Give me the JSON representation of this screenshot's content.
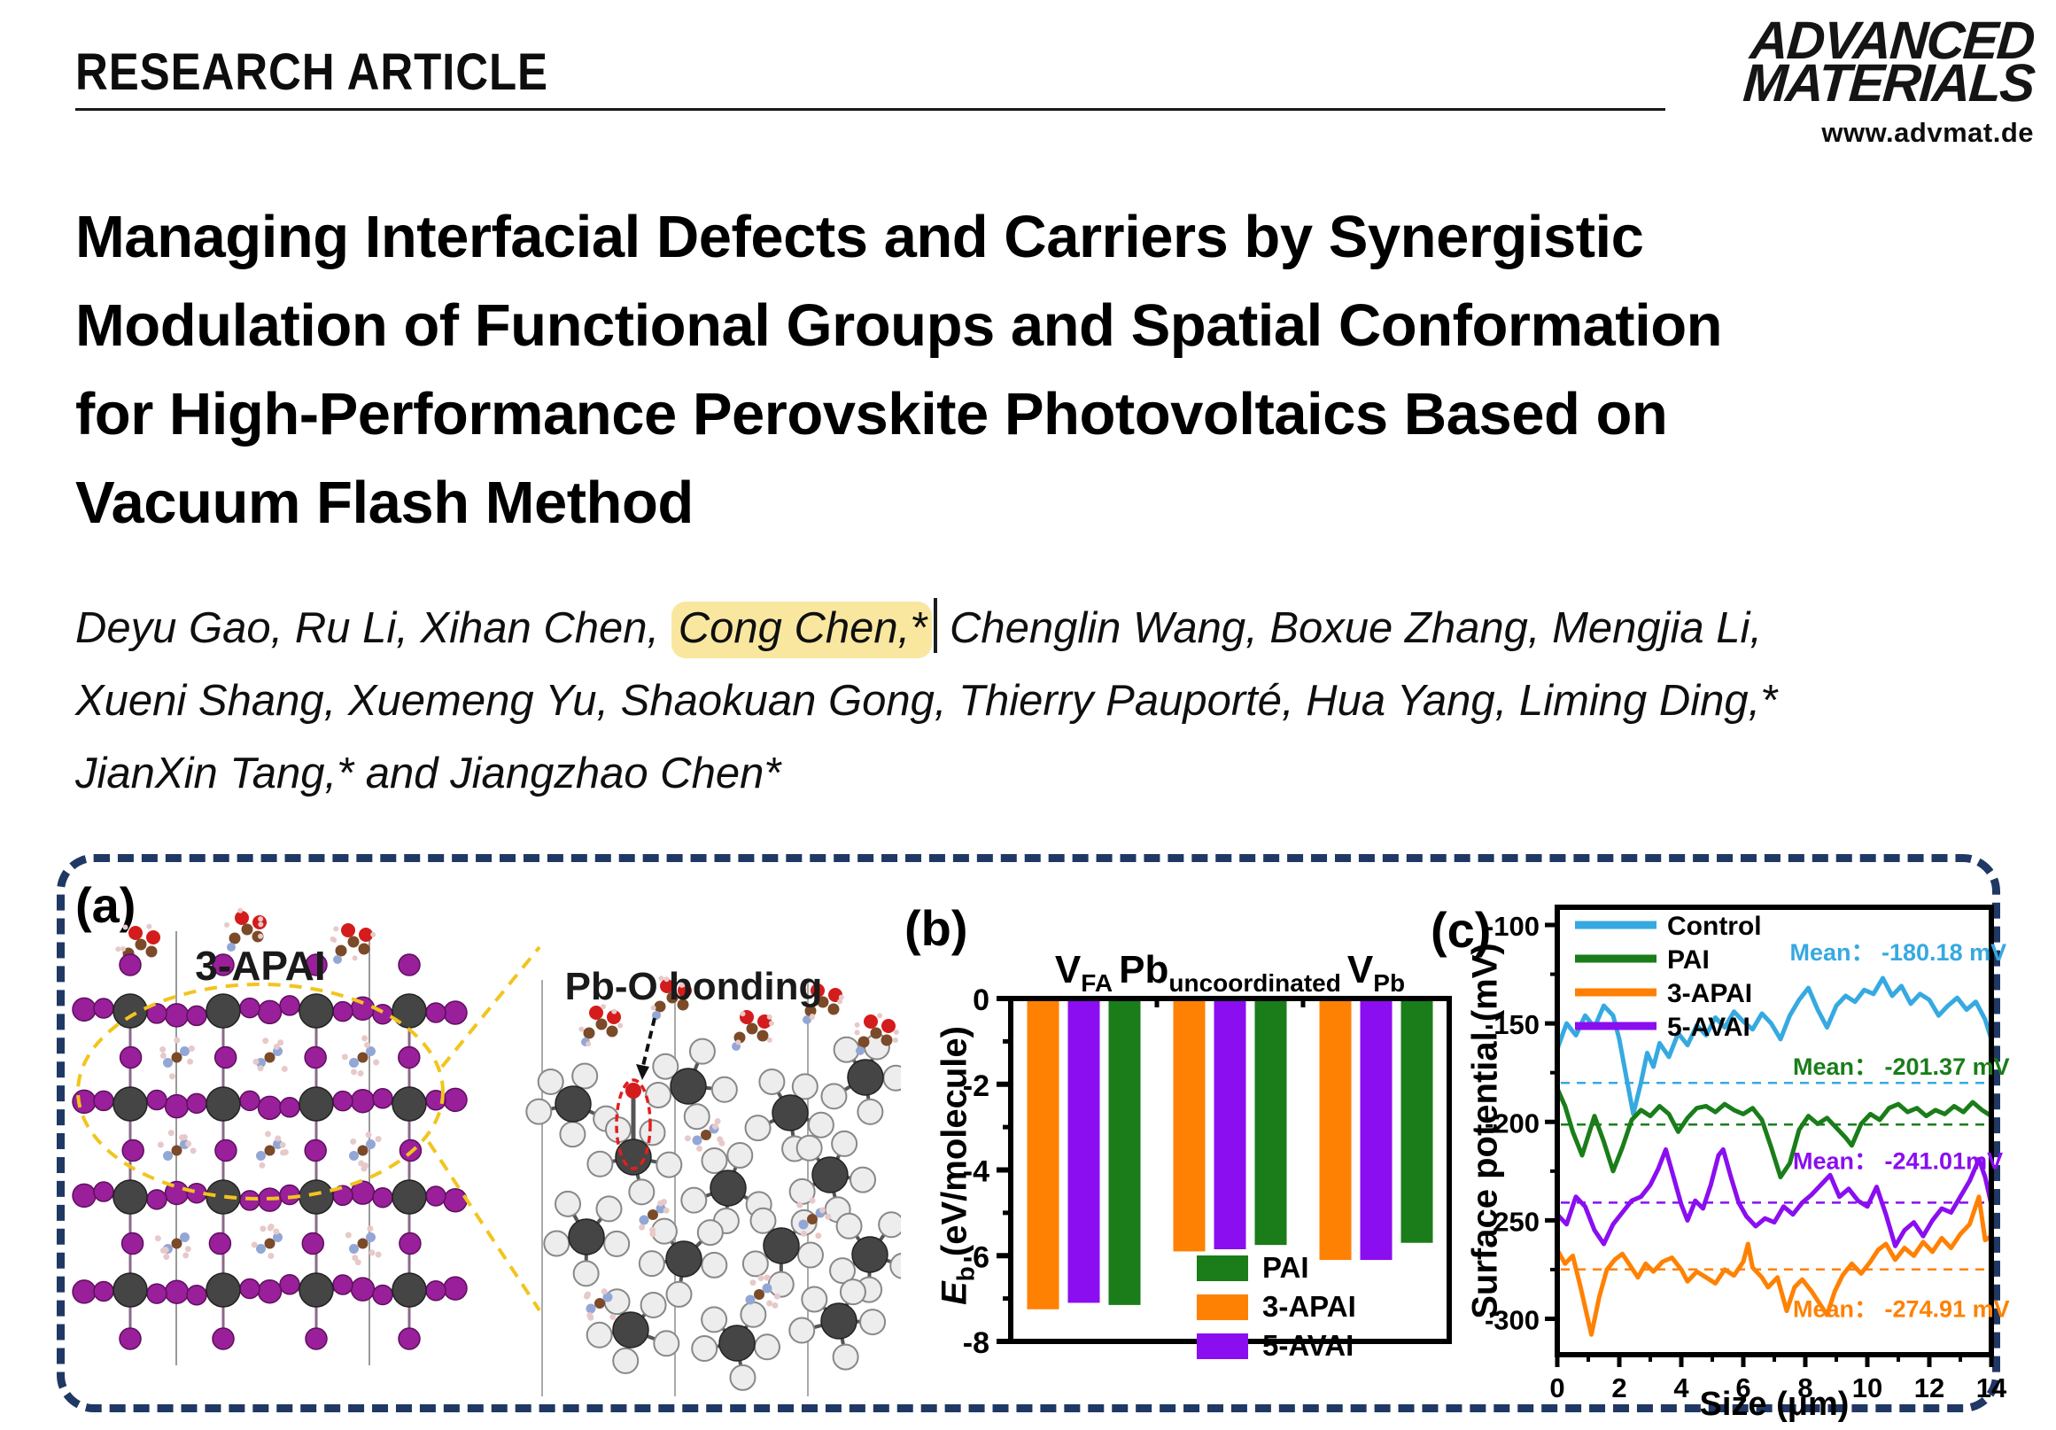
{
  "header": {
    "article_type": "RESEARCH ARTICLE",
    "journal_logo_line1": "ADVANCED",
    "journal_logo_line2": "MATERIALS",
    "journal_url": "www.advmat.de"
  },
  "title_lines": [
    "Managing Interfacial Defects and Carriers by Synergistic",
    "Modulation of Functional Groups and Spatial Conformation",
    "for High-Performance Perovskite Photovoltaics Based on",
    "Vacuum Flash Method"
  ],
  "authors": {
    "line1_before": "Deyu Gao, Ru Li, Xihan Chen, ",
    "highlighted": "Cong Chen,*",
    "line1_after": " Chenglin Wang, Boxue Zhang, Mengjia Li,",
    "line2": "Xueni Shang, Xuemeng Yu, Shaokuan Gong, Thierry Pauporté, Hua Yang, Liming Ding,*",
    "line3": "JianXin Tang,* and Jiangzhao Chen*",
    "highlight_color": "#f9e7a0"
  },
  "figure": {
    "border_color": "#1f3864",
    "panel_a": {
      "label": "(a)",
      "left_structure_label": "3-APAI",
      "right_structure_label": "Pb-O bonding",
      "colors": {
        "iodine": "#9a1f9a",
        "lead": "#454545",
        "halide_light": "#ededed",
        "oxygen": "#d41c1c",
        "carbon": "#7b4a28",
        "nitrogen": "#93a7d6",
        "hydrogen": "#e7c9c9",
        "highlight_ellipse": "#f2c41d",
        "bond_ellipse": "#e01f1f"
      }
    },
    "panel_b": {
      "label": "(b)"
    },
    "panel_c": {
      "label": "(c)"
    }
  },
  "chart_data": [
    {
      "id": "binding-energy-bars",
      "type": "bar",
      "ylabel_parts": {
        "em": "E",
        "sub": "b",
        "rest": " (eV/molecule)"
      },
      "ylim": [
        -8,
        0
      ],
      "yticks": [
        0,
        -2,
        -4,
        -6,
        -8
      ],
      "groups": [
        {
          "label_main": "V",
          "label_sub": "FA"
        },
        {
          "label_main": "Pb",
          "label_sub": "uncoordinated"
        },
        {
          "label_main": "V",
          "label_sub": "Pb"
        }
      ],
      "series": [
        {
          "name": "3-APAI",
          "color": "#ff8103",
          "values": [
            -7.25,
            -5.9,
            -6.1
          ]
        },
        {
          "name": "5-AVAI",
          "color": "#8a0ef0",
          "values": [
            -7.1,
            -5.85,
            -6.1
          ]
        },
        {
          "name": "PAI",
          "color": "#1a7d1a",
          "values": [
            -7.15,
            -5.75,
            -5.7
          ]
        }
      ],
      "legend": [
        {
          "name": "PAI",
          "color": "#1a7d1a"
        },
        {
          "name": "3-APAI",
          "color": "#ff8103"
        },
        {
          "name": "5-AVAI",
          "color": "#8a0ef0"
        }
      ]
    },
    {
      "id": "surface-potential-lines",
      "type": "line",
      "xlabel": "Size (μm)",
      "ylabel": "Surface potential (mV)",
      "xlim": [
        0,
        14
      ],
      "xticks": [
        0,
        2,
        4,
        6,
        8,
        10,
        12,
        14
      ],
      "yticks": [
        -100,
        -150,
        -200,
        -250,
        -300
      ],
      "series": [
        {
          "name": "Control",
          "color": "#36a9e1",
          "mean": -180.18,
          "mean_label": "Mean： -180.18 mV",
          "label_pos": [
            7.5,
            -118
          ],
          "points": [
            [
              0,
              -163
            ],
            [
              0.3,
              -150
            ],
            [
              0.6,
              -156
            ],
            [
              0.9,
              -146
            ],
            [
              1.2,
              -152
            ],
            [
              1.5,
              -141
            ],
            [
              1.8,
              -146
            ],
            [
              2.0,
              -158
            ],
            [
              2.2,
              -175
            ],
            [
              2.45,
              -196
            ],
            [
              2.7,
              -180
            ],
            [
              2.9,
              -165
            ],
            [
              3.1,
              -172
            ],
            [
              3.3,
              -160
            ],
            [
              3.6,
              -167
            ],
            [
              3.9,
              -155
            ],
            [
              4.2,
              -161
            ],
            [
              4.5,
              -151
            ],
            [
              4.8,
              -156
            ],
            [
              5.1,
              -147
            ],
            [
              5.4,
              -152
            ],
            [
              5.7,
              -144
            ],
            [
              6.0,
              -149
            ],
            [
              6.3,
              -153
            ],
            [
              6.6,
              -145
            ],
            [
              6.9,
              -150
            ],
            [
              7.2,
              -158
            ],
            [
              7.5,
              -146
            ],
            [
              7.8,
              -138
            ],
            [
              8.1,
              -132
            ],
            [
              8.4,
              -143
            ],
            [
              8.7,
              -152
            ],
            [
              9.0,
              -141
            ],
            [
              9.3,
              -136
            ],
            [
              9.6,
              -139
            ],
            [
              9.9,
              -133
            ],
            [
              10.2,
              -135
            ],
            [
              10.5,
              -127
            ],
            [
              10.8,
              -136
            ],
            [
              11.1,
              -131
            ],
            [
              11.4,
              -140
            ],
            [
              11.7,
              -135
            ],
            [
              12.0,
              -138
            ],
            [
              12.3,
              -146
            ],
            [
              12.6,
              -141
            ],
            [
              12.9,
              -137
            ],
            [
              13.2,
              -143
            ],
            [
              13.5,
              -139
            ],
            [
              13.8,
              -148
            ],
            [
              14,
              -158
            ]
          ]
        },
        {
          "name": "PAI",
          "color": "#1a7d1a",
          "mean": -201.37,
          "mean_label": "Mean： -201.37 mV",
          "label_pos": [
            7.6,
            -176
          ],
          "points": [
            [
              0,
              -183
            ],
            [
              0.25,
              -192
            ],
            [
              0.5,
              -205
            ],
            [
              0.8,
              -217
            ],
            [
              1.0,
              -207
            ],
            [
              1.2,
              -197
            ],
            [
              1.5,
              -210
            ],
            [
              1.8,
              -225
            ],
            [
              2.1,
              -213
            ],
            [
              2.4,
              -199
            ],
            [
              2.7,
              -194
            ],
            [
              3.0,
              -197
            ],
            [
              3.3,
              -192
            ],
            [
              3.6,
              -196
            ],
            [
              3.9,
              -205
            ],
            [
              4.2,
              -198
            ],
            [
              4.5,
              -193
            ],
            [
              4.8,
              -192
            ],
            [
              5.1,
              -195
            ],
            [
              5.4,
              -191
            ],
            [
              5.7,
              -194
            ],
            [
              6.0,
              -196
            ],
            [
              6.3,
              -193
            ],
            [
              6.6,
              -199
            ],
            [
              6.9,
              -213
            ],
            [
              7.2,
              -228
            ],
            [
              7.5,
              -221
            ],
            [
              7.8,
              -204
            ],
            [
              8.1,
              -197
            ],
            [
              8.4,
              -201
            ],
            [
              8.7,
              -198
            ],
            [
              9.0,
              -203
            ],
            [
              9.3,
              -208
            ],
            [
              9.5,
              -212
            ],
            [
              9.8,
              -201
            ],
            [
              10.1,
              -196
            ],
            [
              10.4,
              -199
            ],
            [
              10.7,
              -193
            ],
            [
              11.0,
              -191
            ],
            [
              11.3,
              -195
            ],
            [
              11.6,
              -193
            ],
            [
              11.9,
              -197
            ],
            [
              12.2,
              -194
            ],
            [
              12.5,
              -196
            ],
            [
              12.8,
              -192
            ],
            [
              13.1,
              -195
            ],
            [
              13.4,
              -190
            ],
            [
              13.7,
              -194
            ],
            [
              14,
              -197
            ]
          ]
        },
        {
          "name": "3-APAI",
          "color": "#ff8103",
          "mean": -274.91,
          "mean_label": "Mean： -274.91 mV",
          "label_pos": [
            7.6,
            -299
          ],
          "points": [
            [
              0,
              -265
            ],
            [
              0.25,
              -272
            ],
            [
              0.5,
              -268
            ],
            [
              0.75,
              -284
            ],
            [
              1.1,
              -308
            ],
            [
              1.35,
              -289
            ],
            [
              1.6,
              -275
            ],
            [
              1.85,
              -270
            ],
            [
              2.1,
              -267
            ],
            [
              2.35,
              -273
            ],
            [
              2.6,
              -279
            ],
            [
              2.85,
              -272
            ],
            [
              3.1,
              -276
            ],
            [
              3.4,
              -271
            ],
            [
              3.7,
              -269
            ],
            [
              4.0,
              -275
            ],
            [
              4.2,
              -281
            ],
            [
              4.5,
              -276
            ],
            [
              4.8,
              -279
            ],
            [
              5.1,
              -282
            ],
            [
              5.4,
              -275
            ],
            [
              5.7,
              -278
            ],
            [
              6.0,
              -271
            ],
            [
              6.15,
              -262
            ],
            [
              6.3,
              -274
            ],
            [
              6.6,
              -279
            ],
            [
              6.8,
              -284
            ],
            [
              7.1,
              -279
            ],
            [
              7.4,
              -296
            ],
            [
              7.65,
              -284
            ],
            [
              7.9,
              -280
            ],
            [
              8.2,
              -286
            ],
            [
              8.45,
              -292
            ],
            [
              8.7,
              -298
            ],
            [
              8.95,
              -286
            ],
            [
              9.2,
              -278
            ],
            [
              9.5,
              -272
            ],
            [
              9.8,
              -277
            ],
            [
              10.1,
              -271
            ],
            [
              10.35,
              -265
            ],
            [
              10.6,
              -262
            ],
            [
              10.9,
              -270
            ],
            [
              11.2,
              -264
            ],
            [
              11.5,
              -268
            ],
            [
              11.8,
              -261
            ],
            [
              12.1,
              -266
            ],
            [
              12.4,
              -259
            ],
            [
              12.7,
              -264
            ],
            [
              13.0,
              -257
            ],
            [
              13.3,
              -252
            ],
            [
              13.6,
              -238
            ],
            [
              13.8,
              -260
            ],
            [
              14,
              -258
            ]
          ]
        },
        {
          "name": "5-AVAI",
          "color": "#8a0ef0",
          "mean": -241.01,
          "mean_label": "Mean： -241.01mV",
          "label_pos": [
            7.6,
            -224
          ],
          "points": [
            [
              0,
              -247
            ],
            [
              0.3,
              -252
            ],
            [
              0.6,
              -238
            ],
            [
              0.9,
              -243
            ],
            [
              1.2,
              -255
            ],
            [
              1.5,
              -262
            ],
            [
              1.8,
              -252
            ],
            [
              2.1,
              -246
            ],
            [
              2.4,
              -240
            ],
            [
              2.7,
              -238
            ],
            [
              3.0,
              -232
            ],
            [
              3.25,
              -224
            ],
            [
              3.5,
              -214
            ],
            [
              3.75,
              -228
            ],
            [
              4.0,
              -242
            ],
            [
              4.2,
              -250
            ],
            [
              4.45,
              -240
            ],
            [
              4.7,
              -244
            ],
            [
              4.95,
              -232
            ],
            [
              5.2,
              -217
            ],
            [
              5.35,
              -214
            ],
            [
              5.6,
              -228
            ],
            [
              5.85,
              -241
            ],
            [
              6.1,
              -248
            ],
            [
              6.4,
              -253
            ],
            [
              6.7,
              -249
            ],
            [
              7.0,
              -251
            ],
            [
              7.3,
              -243
            ],
            [
              7.6,
              -247
            ],
            [
              7.9,
              -241
            ],
            [
              8.2,
              -237
            ],
            [
              8.5,
              -232
            ],
            [
              8.8,
              -227
            ],
            [
              9.1,
              -238
            ],
            [
              9.4,
              -234
            ],
            [
              9.7,
              -240
            ],
            [
              10.0,
              -243
            ],
            [
              10.3,
              -233
            ],
            [
              10.6,
              -247
            ],
            [
              10.9,
              -263
            ],
            [
              11.2,
              -255
            ],
            [
              11.5,
              -251
            ],
            [
              11.8,
              -258
            ],
            [
              12.1,
              -250
            ],
            [
              12.4,
              -244
            ],
            [
              12.7,
              -246
            ],
            [
              13.0,
              -238
            ],
            [
              13.3,
              -230
            ],
            [
              13.6,
              -219
            ],
            [
              13.8,
              -228
            ],
            [
              14,
              -242
            ]
          ]
        }
      ],
      "legend_order": [
        "Control",
        "PAI",
        "3-APAI",
        "5-AVAI"
      ]
    }
  ]
}
